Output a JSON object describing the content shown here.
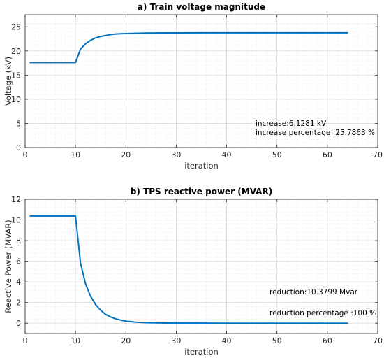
{
  "colors": {
    "series": "#0072BD"
  },
  "chart_data": [
    {
      "type": "line",
      "title": "a) Train voltage magnitude",
      "xlabel": "iteration",
      "ylabel": "Voltage (kV)",
      "xlim": [
        0,
        70
      ],
      "ylim": [
        0,
        27.5
      ],
      "xticks": [
        0,
        10,
        20,
        30,
        40,
        50,
        60,
        70
      ],
      "yticks": [
        0,
        5,
        10,
        15,
        20,
        25
      ],
      "grid": true,
      "annotations": [
        "increase:6.1281 kV",
        "increase percentage :25.7863 %"
      ],
      "series": [
        {
          "x": [
            1,
            2,
            3,
            4,
            5,
            6,
            7,
            8,
            9,
            10,
            11,
            12,
            13,
            14,
            15,
            16,
            17,
            18,
            19,
            20,
            22,
            24,
            26,
            28,
            30,
            35,
            40,
            45,
            50,
            55,
            60,
            64
          ],
          "y": [
            17.6,
            17.6,
            17.6,
            17.6,
            17.6,
            17.6,
            17.6,
            17.6,
            17.6,
            17.6,
            20.4,
            21.5,
            22.2,
            22.7,
            23.0,
            23.2,
            23.4,
            23.5,
            23.55,
            23.6,
            23.65,
            23.7,
            23.72,
            23.73,
            23.74,
            23.75,
            23.75,
            23.75,
            23.75,
            23.75,
            23.75,
            23.75
          ]
        }
      ]
    },
    {
      "type": "line",
      "title": "b) TPS reactive power (MVAR)",
      "xlabel": "iteration",
      "ylabel": "Reactive Power (MVAR)",
      "xlim": [
        0,
        70
      ],
      "ylim": [
        -1,
        12
      ],
      "xticks": [
        0,
        10,
        20,
        30,
        40,
        50,
        60,
        70
      ],
      "yticks": [
        0,
        2,
        4,
        6,
        8,
        10,
        12
      ],
      "grid": true,
      "annotations": [
        "reduction:10.3799 Mvar",
        "reduction percentage :100 %"
      ],
      "series": [
        {
          "x": [
            1,
            2,
            3,
            4,
            5,
            6,
            7,
            8,
            9,
            10,
            11,
            12,
            13,
            14,
            15,
            16,
            17,
            18,
            19,
            20,
            22,
            24,
            26,
            28,
            30,
            35,
            40,
            45,
            50,
            55,
            60,
            64
          ],
          "y": [
            10.38,
            10.38,
            10.38,
            10.38,
            10.38,
            10.38,
            10.38,
            10.38,
            10.38,
            10.38,
            5.8,
            3.8,
            2.6,
            1.8,
            1.25,
            0.85,
            0.6,
            0.42,
            0.3,
            0.2,
            0.1,
            0.05,
            0.03,
            0.015,
            0.01,
            0.005,
            0.002,
            0.001,
            0.0,
            0.0,
            0.0,
            0.0
          ]
        }
      ]
    }
  ]
}
